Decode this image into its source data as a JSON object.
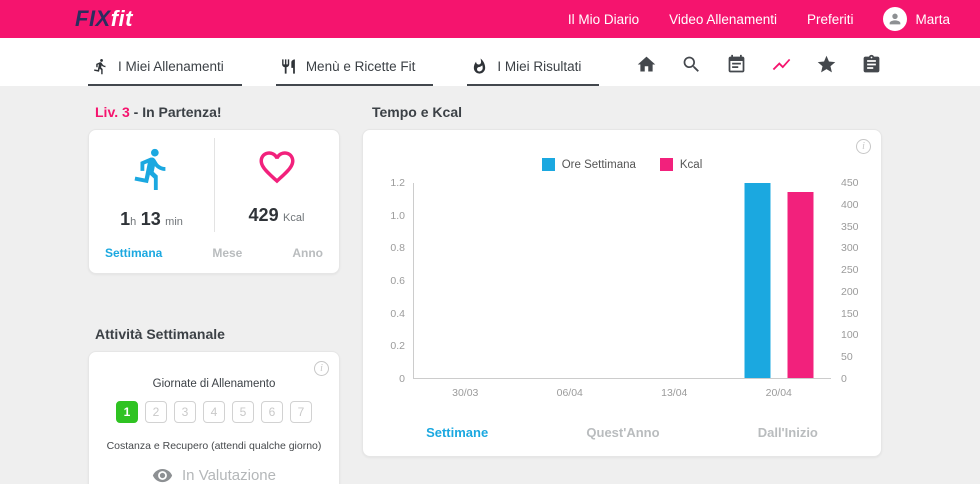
{
  "colors": {
    "brand_pink": "#F5146E",
    "blue": "#1BA8E0",
    "bar_pink": "#F2217C",
    "green": "#2FC322"
  },
  "header": {
    "logo_fix": "FIX",
    "logo_fit": "fit",
    "nav": [
      {
        "label": "Il Mio Diario"
      },
      {
        "label": "Video Allenamenti"
      },
      {
        "label": "Preferiti"
      }
    ],
    "user": "Marta",
    "avatar_icon": "person-icon"
  },
  "tabs": [
    {
      "label": "I Miei Allenamenti",
      "icon": "runner-icon"
    },
    {
      "label": "Menù e Ricette Fit",
      "icon": "cutlery-icon"
    },
    {
      "label": "I Miei Risultati",
      "icon": "flame-icon"
    }
  ],
  "toolbar": {
    "icons": [
      "home-icon",
      "search-icon",
      "calendar-icon",
      "chart-icon",
      "star-icon",
      "clipboard-icon"
    ]
  },
  "summary": {
    "level": "Liv. 3",
    "level_text": " - In Partenza!",
    "time": {
      "hours": "1",
      "hours_unit": "h",
      "minutes": "13",
      "minutes_unit": "min"
    },
    "kcal": {
      "value": "429",
      "unit": "Kcal"
    },
    "filters": [
      {
        "label": "Settimana",
        "active": true
      },
      {
        "label": "Mese",
        "active": false
      },
      {
        "label": "Anno",
        "active": false
      }
    ]
  },
  "weekly": {
    "title": "Attività Settimanale",
    "subtitle": "Giornate di Allenamento",
    "days": [
      "1",
      "2",
      "3",
      "4",
      "5",
      "6",
      "7"
    ],
    "active_day": 1,
    "note": "Costanza e Recupero (attendi qualche giorno)",
    "status": "In Valutazione"
  },
  "chart_card": {
    "title": "Tempo e Kcal",
    "footer": [
      {
        "label": "Settimane",
        "active": true
      },
      {
        "label": "Quest'Anno",
        "active": false
      },
      {
        "label": "Dall'Inizio",
        "active": false
      }
    ]
  },
  "chart_data": {
    "type": "bar",
    "title": "Tempo e Kcal",
    "categories": [
      "30/03",
      "06/04",
      "13/04",
      "20/04"
    ],
    "series": [
      {
        "name": "Ore Settimana",
        "axis": "left",
        "color": "#1BA8E0",
        "values": [
          0,
          0,
          0,
          1.2
        ]
      },
      {
        "name": "Kcal",
        "axis": "right",
        "color": "#F2217C",
        "values": [
          0,
          0,
          0,
          429
        ]
      }
    ],
    "left_axis": {
      "max": 1.2,
      "tick_labels": [
        "0",
        "0.2",
        "0.4",
        "0.6",
        "0.8",
        "1.0",
        "1.2"
      ]
    },
    "right_axis": {
      "max": 450,
      "tick_labels": [
        "0",
        "50",
        "100",
        "150",
        "200",
        "250",
        "300",
        "350",
        "400",
        "450"
      ]
    },
    "legend_position": "top-center",
    "grid": false
  }
}
